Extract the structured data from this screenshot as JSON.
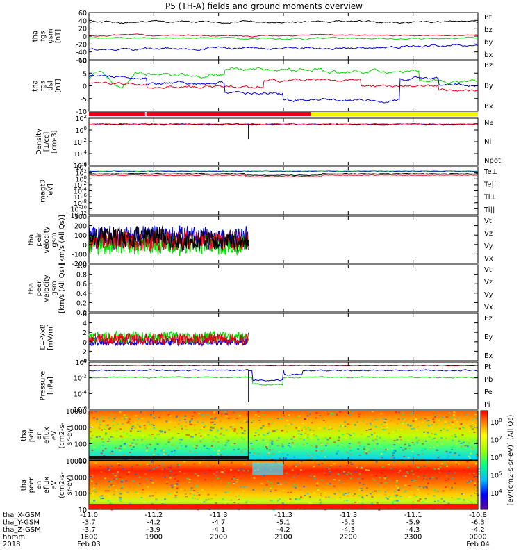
{
  "title": "P5 (TH-A) fields and ground moments overview",
  "colors": {
    "black": "#000000",
    "red": "#e8001a",
    "green": "#00e000",
    "blue": "#0000e0",
    "yellow": "#f5f500"
  },
  "chart_data": [
    {
      "id": "fgs_gsm",
      "type": "line",
      "ylabel": [
        "tha",
        "fgs",
        "gsm",
        "[nT]"
      ],
      "ylim": [
        -60,
        60
      ],
      "yticks": [
        "60",
        "40",
        "20",
        "0",
        "-20",
        "-40",
        "-60"
      ],
      "series": [
        {
          "name": "Bt",
          "color": "#000000"
        },
        {
          "name": "bz",
          "color": "#e8001a"
        },
        {
          "name": "by",
          "color": "#00e000"
        },
        {
          "name": "bx",
          "color": "#0000e0"
        }
      ],
      "levels": {
        "Bt": 36,
        "bz": 2,
        "by": -5,
        "bx": -30
      }
    },
    {
      "id": "fgs_dsl",
      "type": "line",
      "ylabel": [
        "tha",
        "fgs",
        "dsl",
        "[nT]"
      ],
      "ylim": [
        -12,
        10
      ],
      "yticks": [
        "10",
        "5",
        "0",
        "-5",
        "-10"
      ],
      "series": [
        {
          "name": "Bz",
          "color": "#e8001a"
        },
        {
          "name": "By",
          "color": "#00e000"
        },
        {
          "name": "Bx",
          "color": "#0000e0"
        }
      ]
    },
    {
      "id": "mode_bar",
      "type": "bar",
      "segments": [
        {
          "color": "red",
          "from": 0.0,
          "to": 0.57
        },
        {
          "color": "yellow",
          "from": 0.57,
          "to": 1.0
        }
      ]
    },
    {
      "id": "density",
      "type": "line",
      "ylabel": [
        "Density",
        "[1/cc]",
        "[cm-3]"
      ],
      "ylog": true,
      "yticks": [
        "10^2",
        "10^0",
        "10^-2",
        "10^-4",
        "10^-6"
      ],
      "series": [
        {
          "name": "Ne",
          "color": "#e8001a"
        },
        {
          "name": "Ni",
          "color": "#000000"
        },
        {
          "name": "Npot",
          "color": "#0000e0"
        }
      ]
    },
    {
      "id": "temperature",
      "type": "line",
      "ylabel": [
        "magt3",
        "[eV]"
      ],
      "ylog": true,
      "yticks": [
        "10^4",
        "10^2",
        "10^0",
        "10^-2",
        "10^-4",
        "10^-6",
        "10^-8",
        "10^-10",
        "10^-12"
      ],
      "series": [
        {
          "name": "Te⊥",
          "color": "#e8001a"
        },
        {
          "name": "Te||",
          "color": "#000000"
        },
        {
          "name": "Ti⊥",
          "color": "#0000e0"
        },
        {
          "name": "Ti||",
          "color": "#00e000"
        }
      ]
    },
    {
      "id": "peir_velocity",
      "type": "line",
      "ylabel": [
        "tha",
        "peir",
        "velocity",
        "gsm",
        "[km/s (All Qs)]"
      ],
      "ylim": [
        -200,
        300
      ],
      "yticks": [
        "300",
        "200",
        "100",
        "0",
        "-100",
        "-200"
      ],
      "series": [
        {
          "name": "Vt",
          "color": "#000000"
        },
        {
          "name": "Vz",
          "color": "#e8001a"
        },
        {
          "name": "Vy",
          "color": "#00e000"
        },
        {
          "name": "Vx",
          "color": "#0000e0"
        }
      ]
    },
    {
      "id": "peer_velocity",
      "type": "line",
      "ylabel": [
        "tha",
        "peer",
        "velocity",
        "gsm",
        "[km/s (All Qs)]"
      ],
      "ylim": [
        0,
        1
      ],
      "yticks": [
        "1.0",
        "0.8",
        "0.6",
        "0.4",
        "0.2",
        "0.0"
      ],
      "series": [
        {
          "name": "Vt",
          "color": "#000000"
        },
        {
          "name": "Vz",
          "color": "#e8001a"
        },
        {
          "name": "Vy",
          "color": "#00e000"
        },
        {
          "name": "Vx",
          "color": "#0000e0"
        }
      ]
    },
    {
      "id": "efield",
      "type": "line",
      "ylabel": [
        "E=-VxB",
        "[mV/m]"
      ],
      "ylim": [
        -4,
        6
      ],
      "yticks": [
        "6",
        "4",
        "2",
        "0",
        "-2",
        "-4"
      ],
      "series": [
        {
          "name": "Ez",
          "color": "#e8001a"
        },
        {
          "name": "Ey",
          "color": "#00e000"
        },
        {
          "name": "Ex",
          "color": "#0000e0"
        }
      ]
    },
    {
      "id": "pressure",
      "type": "line",
      "ylabel": [
        "Pressure",
        "[nPa]"
      ],
      "ylog": true,
      "yticks": [
        "10^0",
        "10^-2",
        "10^-4",
        "10^-6"
      ],
      "series": [
        {
          "name": "Pt",
          "color": "#000000"
        },
        {
          "name": "Pb",
          "color": "#e8001a"
        },
        {
          "name": "Pe",
          "color": "#00e000"
        },
        {
          "name": "Pi",
          "color": "#0000e0"
        }
      ]
    },
    {
      "id": "peir_spec",
      "type": "heatmap",
      "ylabel": [
        "tha",
        "peir",
        "en",
        "eflux",
        "eV",
        "(cm2-s-",
        "sr-eV)"
      ],
      "ylog": true,
      "yticks": [
        "10000",
        "1000",
        "100",
        "10"
      ]
    },
    {
      "id": "peer_spec",
      "type": "heatmap",
      "ylabel": [
        "tha",
        "peer",
        "en",
        "eflux",
        "eV",
        "(cm2-s-",
        "sr-eV)"
      ],
      "ylog": true,
      "yticks": [
        "10000",
        "1000",
        "100",
        "10"
      ]
    }
  ],
  "colorbar": {
    "label": "[eV/(cm2-s-sr-eV)] (All Qs)",
    "ticks": [
      "10^8",
      "10^7",
      "10^6",
      "10^5",
      "10^4"
    ]
  },
  "xaxis": {
    "rows": [
      {
        "label": "tha_X-GSM",
        "values": [
          "-11.0",
          "-11.2",
          "-11.3",
          "-11.3",
          "-11.3",
          "-11.1",
          "-10.8"
        ]
      },
      {
        "label": "tha_Y-GSM",
        "values": [
          "-3.7",
          "-4.2",
          "-4.7",
          "-5.1",
          "-5.5",
          "-5.9",
          "-6.3"
        ]
      },
      {
        "label": "tha_Z-GSM",
        "values": [
          "-3.7",
          "-3.9",
          "-4.1",
          "-4.2",
          "-4.3",
          "-4.3",
          "-4.2"
        ]
      },
      {
        "label": "hhmm",
        "values": [
          "1800",
          "1900",
          "2000",
          "2100",
          "2200",
          "2300",
          "0000"
        ]
      },
      {
        "label": "2018",
        "values": [
          "Feb 03",
          "",
          "",
          "",
          "",
          "",
          "Feb 04"
        ]
      }
    ]
  }
}
